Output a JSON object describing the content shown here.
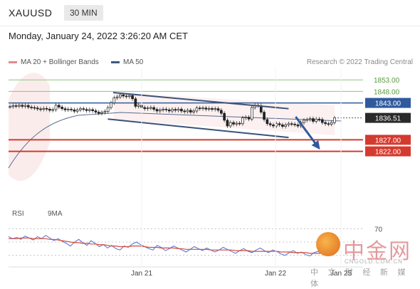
{
  "header": {
    "symbol": "XAUUSD",
    "timeframe": "30 MIN"
  },
  "datetime": "Monday, January 24, 2022 3:26:20 AM CET",
  "legend": {
    "ma20": "MA 20 + Bollinger Bands",
    "ma20_color": "#e58a8a",
    "ma50": "MA 50",
    "ma50_color": "#3c5a7e"
  },
  "research": "Research © 2022 Trading Central",
  "rsi_legend": {
    "rsi": "RSI",
    "rsi_color": "#4f6fd6",
    "ma": "9MA",
    "ma_color": "#d64b3a"
  },
  "chart_data": [
    {
      "type": "candlestick",
      "title": "",
      "x_ticks": [
        "Jan 21",
        "Jan 22",
        "Jan 25"
      ],
      "ylim": [
        1812,
        1858
      ],
      "levels": [
        {
          "value": 1853.0,
          "label": "1853.00",
          "color": "#8fc47e"
        },
        {
          "value": 1848.0,
          "label": "1848.00",
          "color": "#8fc47e"
        },
        {
          "value": 1843.0,
          "label": "1843.00",
          "color": "#2f5a9e"
        },
        {
          "value": 1827.0,
          "label": "1827.00",
          "color": "#d43a2f"
        },
        {
          "value": 1822.0,
          "label": "1822.00",
          "color": "#d43a2f"
        }
      ],
      "current_price": {
        "value": 1836.51,
        "label": "1836.51",
        "color": "#2a2a2a"
      },
      "channel": {
        "upper": [
          [
            0.295,
            1847.5
          ],
          [
            0.79,
            1840.5
          ]
        ],
        "lower": [
          [
            0.28,
            1836.0
          ],
          [
            0.79,
            1828.0
          ]
        ]
      },
      "forecast_arrow": {
        "from": [
          0.81,
          1837.0
        ],
        "to": [
          0.875,
          1823.5
        ]
      },
      "close": [
        1841.4,
        1841.8,
        1841.6,
        1842.0,
        1841.5,
        1841.9,
        1841.2,
        1841.0,
        1840.8,
        1840.4,
        1840.2,
        1840.6,
        1840.3,
        1839.8,
        1840.1,
        1842.0,
        1841.2,
        1840.5,
        1840.0,
        1840.3,
        1840.0,
        1839.4,
        1840.0,
        1840.5,
        1840.2,
        1839.7,
        1840.1,
        1839.6,
        1839.0,
        1838.5,
        1838.9,
        1839.3,
        1841.0,
        1843.0,
        1845.2,
        1845.6,
        1846.5,
        1846.0,
        1845.8,
        1846.2,
        1844.8,
        1841.5,
        1842.0,
        1841.0,
        1840.5,
        1840.8,
        1841.0,
        1840.2,
        1839.5,
        1840.0,
        1840.3,
        1840.0,
        1839.5,
        1840.2,
        1839.8,
        1840.3,
        1839.5,
        1839.2,
        1839.8,
        1839.0,
        1839.5,
        1840.8,
        1840.5,
        1840.8,
        1840.3,
        1840.6,
        1840.2,
        1840.5,
        1839.8,
        1838.5,
        1835.5,
        1833.0,
        1834.5,
        1833.8,
        1834.2,
        1834.0,
        1836.5,
        1836.8,
        1836.0,
        1841.0,
        1842.0,
        1841.8,
        1839.0,
        1835.8,
        1834.0,
        1833.5,
        1833.0,
        1834.0,
        1833.5,
        1832.8,
        1833.5,
        1834.0,
        1833.8,
        1833.5,
        1833.0,
        1834.5,
        1835.5,
        1835.8,
        1836.2,
        1835.0,
        1836.0,
        1835.8,
        1834.5,
        1834.0,
        1833.8,
        1834.5,
        1836.51
      ]
    },
    {
      "type": "line",
      "title": "",
      "ylim": [
        20,
        80
      ],
      "y_ticks": [
        70
      ],
      "series": [
        {
          "name": "RSI",
          "values": [
            58,
            55,
            57,
            54,
            59,
            56,
            53,
            58,
            55,
            60,
            56,
            52,
            55,
            51,
            48,
            44,
            50,
            54,
            49,
            45,
            52,
            48,
            43,
            46,
            41,
            45,
            40,
            38,
            44,
            42,
            47,
            50,
            46,
            43,
            40,
            38,
            45,
            42,
            37,
            40,
            44,
            41,
            38,
            35,
            39,
            43,
            40,
            37,
            41,
            38,
            35,
            38,
            42,
            39,
            36,
            33,
            37,
            40,
            36,
            34,
            38,
            41,
            37,
            34,
            38,
            36,
            32,
            30,
            34,
            37,
            33,
            35,
            31,
            29,
            34,
            36,
            32,
            30,
            33,
            35
          ]
        },
        {
          "name": "9MA",
          "values": [
            55,
            55,
            55,
            56,
            56,
            56,
            55,
            55,
            55,
            55,
            54,
            54,
            53,
            52,
            51,
            50,
            49,
            49,
            48,
            48,
            47,
            47,
            46,
            46,
            45,
            44,
            44,
            43,
            43,
            43,
            44,
            44,
            44,
            43,
            42,
            42,
            42,
            41,
            41,
            41,
            41,
            40,
            40,
            39,
            39,
            39,
            39,
            39,
            39,
            38,
            38,
            38,
            38,
            38,
            38,
            37,
            37,
            37,
            37,
            36,
            36,
            36,
            36,
            36,
            36,
            36,
            35,
            35,
            35,
            34,
            34,
            34,
            34,
            33,
            33,
            33,
            33,
            33,
            32,
            32
          ]
        }
      ]
    }
  ]
}
